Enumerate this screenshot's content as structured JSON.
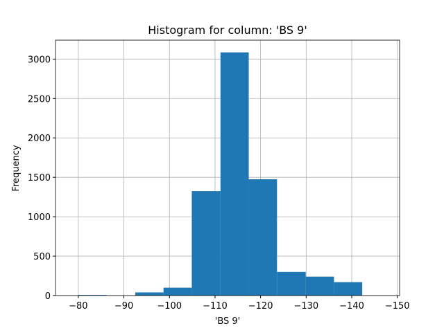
{
  "chart_data": {
    "type": "histogram",
    "title": "Histogram for column: 'BS 9'",
    "xlabel": "'BS 9'",
    "ylabel": "Frequency",
    "color": "#1f77b4",
    "grid": true,
    "bins": [
      -80,
      -86.2,
      -92.5,
      -98.7,
      -104.9,
      -111.2,
      -117.4,
      -123.6,
      -129.9,
      -136.1,
      -142.3
    ],
    "values": [
      8,
      0,
      40,
      100,
      1325,
      3085,
      1475,
      300,
      240,
      170
    ],
    "xlim": [
      -75,
      -150.5
    ],
    "xticks": [
      {
        "value": -80,
        "label": "−80"
      },
      {
        "value": -90,
        "label": "−90"
      },
      {
        "value": -100,
        "label": "−100"
      },
      {
        "value": -110,
        "label": "−110"
      },
      {
        "value": -120,
        "label": "−120"
      },
      {
        "value": -130,
        "label": "−130"
      },
      {
        "value": -140,
        "label": "−140"
      },
      {
        "value": -150,
        "label": "−150"
      }
    ],
    "ylim": [
      0,
      3240
    ],
    "yticks": [
      0,
      500,
      1000,
      1500,
      2000,
      2500,
      3000
    ]
  }
}
